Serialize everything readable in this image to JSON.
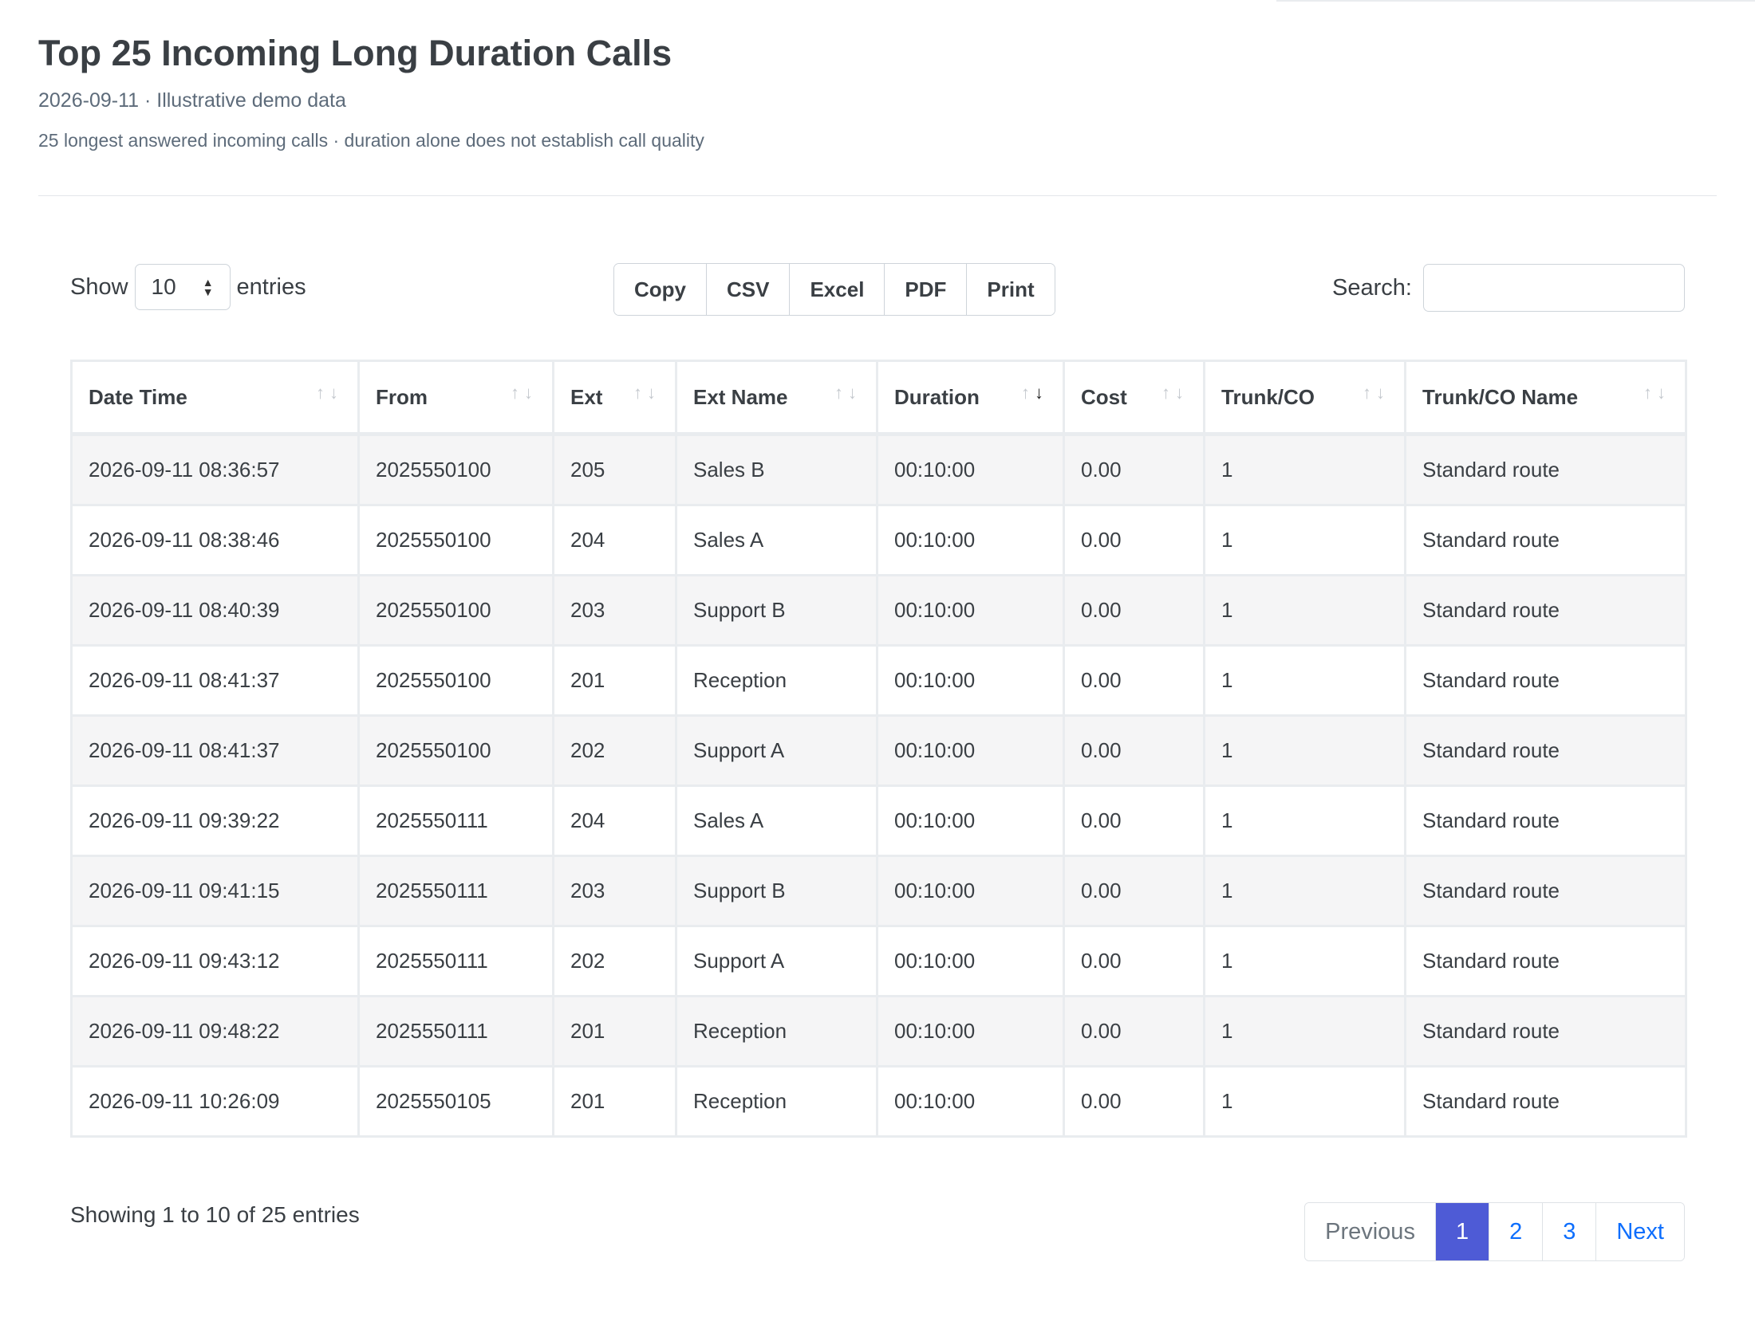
{
  "header": {
    "title": "Top 25 Incoming Long Duration Calls",
    "subtitle": "2026-09-11 · Illustrative demo data",
    "note": "25 longest answered incoming calls · duration alone does not establish call quality"
  },
  "controls": {
    "show_label": "Show",
    "length_value": "10",
    "entries_label": "entries",
    "buttons": [
      "Copy",
      "CSV",
      "Excel",
      "PDF",
      "Print"
    ],
    "search_label": "Search:",
    "search_value": ""
  },
  "table": {
    "columns": [
      "Date Time",
      "From",
      "Ext",
      "Ext Name",
      "Duration",
      "Cost",
      "Trunk/CO",
      "Trunk/CO Name"
    ],
    "sorted_column": "Duration",
    "sorted_direction": "descending",
    "rows": [
      [
        "2026-09-11 08:36:57",
        "2025550100",
        "205",
        "Sales B",
        "00:10:00",
        "0.00",
        "1",
        "Standard route"
      ],
      [
        "2026-09-11 08:38:46",
        "2025550100",
        "204",
        "Sales A",
        "00:10:00",
        "0.00",
        "1",
        "Standard route"
      ],
      [
        "2026-09-11 08:40:39",
        "2025550100",
        "203",
        "Support B",
        "00:10:00",
        "0.00",
        "1",
        "Standard route"
      ],
      [
        "2026-09-11 08:41:37",
        "2025550100",
        "201",
        "Reception",
        "00:10:00",
        "0.00",
        "1",
        "Standard route"
      ],
      [
        "2026-09-11 08:41:37",
        "2025550100",
        "202",
        "Support A",
        "00:10:00",
        "0.00",
        "1",
        "Standard route"
      ],
      [
        "2026-09-11 09:39:22",
        "2025550111",
        "204",
        "Sales A",
        "00:10:00",
        "0.00",
        "1",
        "Standard route"
      ],
      [
        "2026-09-11 09:41:15",
        "2025550111",
        "203",
        "Support B",
        "00:10:00",
        "0.00",
        "1",
        "Standard route"
      ],
      [
        "2026-09-11 09:43:12",
        "2025550111",
        "202",
        "Support A",
        "00:10:00",
        "0.00",
        "1",
        "Standard route"
      ],
      [
        "2026-09-11 09:48:22",
        "2025550111",
        "201",
        "Reception",
        "00:10:00",
        "0.00",
        "1",
        "Standard route"
      ],
      [
        "2026-09-11 10:26:09",
        "2025550105",
        "201",
        "Reception",
        "00:10:00",
        "0.00",
        "1",
        "Standard route"
      ]
    ]
  },
  "footer": {
    "info": "Showing 1 to 10 of 25 entries",
    "pager": {
      "previous": "Previous",
      "pages": [
        "1",
        "2",
        "3"
      ],
      "active_page": "1",
      "next": "Next"
    }
  },
  "colors": {
    "accent": "#4e5bd6",
    "link": "#0d6efd",
    "stripe": "#f5f5f6"
  },
  "icons": {
    "sort": "sort-arrows-icon",
    "length_caret": "select-caret-icon"
  }
}
